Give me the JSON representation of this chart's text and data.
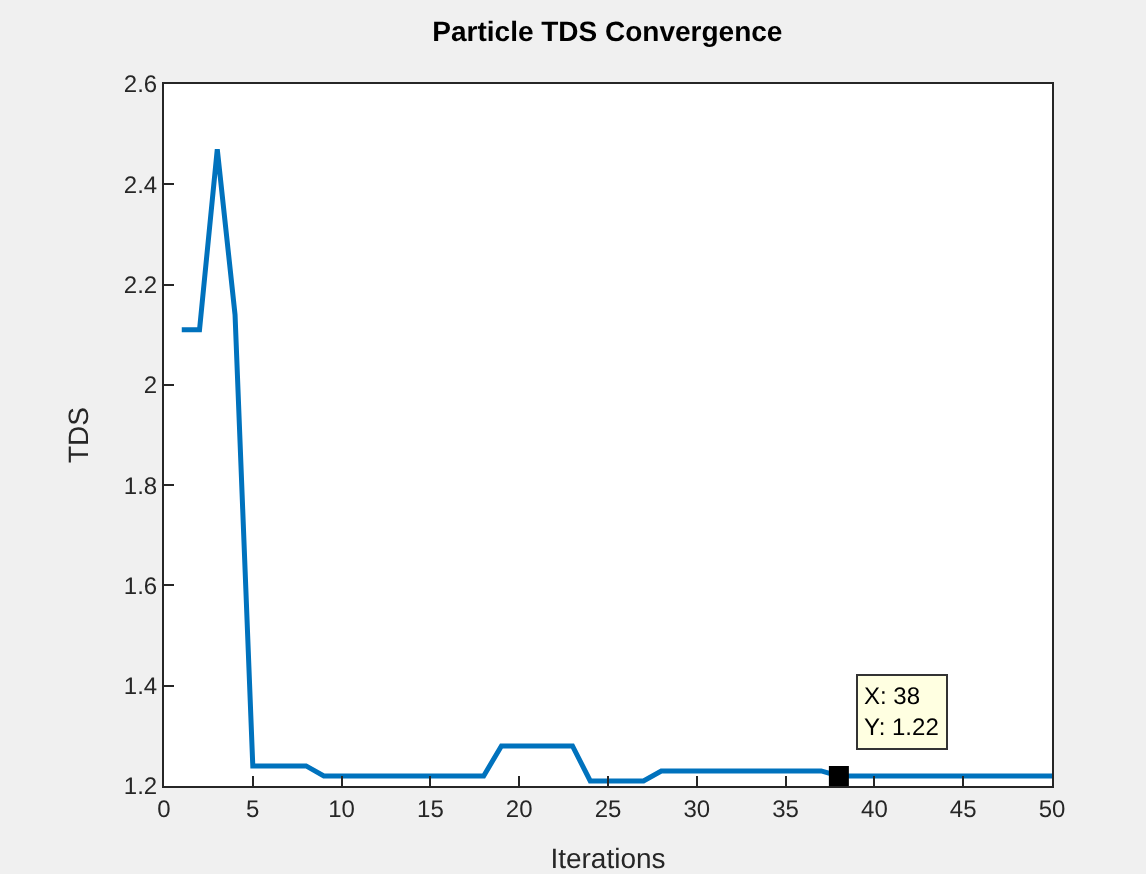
{
  "chart_data": {
    "type": "line",
    "title": "Particle TDS Convergence",
    "xlabel": "Iterations",
    "ylabel": "TDS",
    "x": [
      1,
      2,
      3,
      4,
      5,
      6,
      7,
      8,
      9,
      10,
      11,
      12,
      13,
      14,
      15,
      16,
      17,
      18,
      19,
      20,
      21,
      22,
      23,
      24,
      25,
      26,
      27,
      28,
      29,
      30,
      31,
      32,
      33,
      34,
      35,
      36,
      37,
      38,
      39,
      40,
      41,
      42,
      43,
      44,
      45,
      46,
      47,
      48,
      49,
      50
    ],
    "series": [
      {
        "color": "#0072bd",
        "values": [
          2.11,
          2.11,
          2.47,
          2.14,
          1.24,
          1.24,
          1.24,
          1.24,
          1.22,
          1.22,
          1.22,
          1.22,
          1.22,
          1.22,
          1.22,
          1.22,
          1.22,
          1.22,
          1.28,
          1.28,
          1.28,
          1.28,
          1.28,
          1.21,
          1.21,
          1.21,
          1.21,
          1.23,
          1.23,
          1.23,
          1.23,
          1.23,
          1.23,
          1.23,
          1.23,
          1.23,
          1.23,
          1.22,
          1.22,
          1.22,
          1.22,
          1.22,
          1.22,
          1.22,
          1.22,
          1.22,
          1.22,
          1.22,
          1.22,
          1.22
        ]
      }
    ],
    "annotations": [
      {
        "text": "X: 38\nY: 1.22",
        "x": 38,
        "y": 1.22
      }
    ],
    "xlim": [
      0,
      50
    ],
    "xticks": [
      0,
      5,
      10,
      15,
      20,
      25,
      30,
      35,
      40,
      45,
      50
    ],
    "ylim": [
      1.2,
      2.6
    ],
    "yticks": [
      1.2,
      1.4,
      1.6,
      1.8,
      2,
      2.2,
      2.4,
      2.6
    ],
    "grid": false,
    "marker": "none",
    "line_style": "solid"
  }
}
